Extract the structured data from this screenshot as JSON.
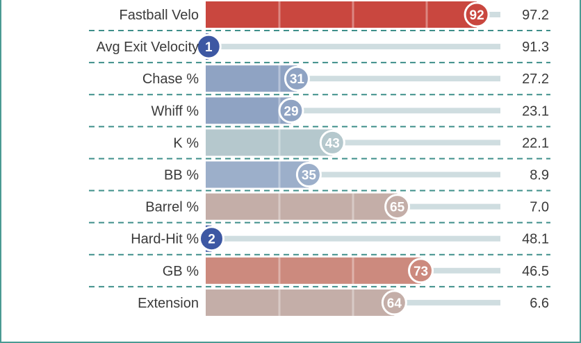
{
  "chart_data": {
    "type": "bar",
    "orientation": "horizontal",
    "xlim": [
      0,
      100
    ],
    "categories": [
      "Fastball Velo",
      "Avg Exit Velocity",
      "Chase %",
      "Whiff %",
      "K %",
      "BB %",
      "Barrel %",
      "Hard-Hit %",
      "GB %",
      "Extension"
    ],
    "percentiles": [
      92,
      1,
      31,
      29,
      43,
      35,
      65,
      2,
      73,
      64
    ],
    "values": [
      "97.2",
      "91.3",
      "27.2",
      "23.1",
      "22.1",
      "8.9",
      "7.0",
      "48.1",
      "46.5",
      "6.6"
    ],
    "colors": [
      "#c9473f",
      "#3d58a3",
      "#8fa3c3",
      "#8fa3c3",
      "#b5c8cd",
      "#9cafca",
      "#c4aea8",
      "#3d58a3",
      "#cc8a7e",
      "#c4aea8"
    ],
    "track_color": "#cfdde0",
    "separator_color": "#3e8f8a"
  }
}
